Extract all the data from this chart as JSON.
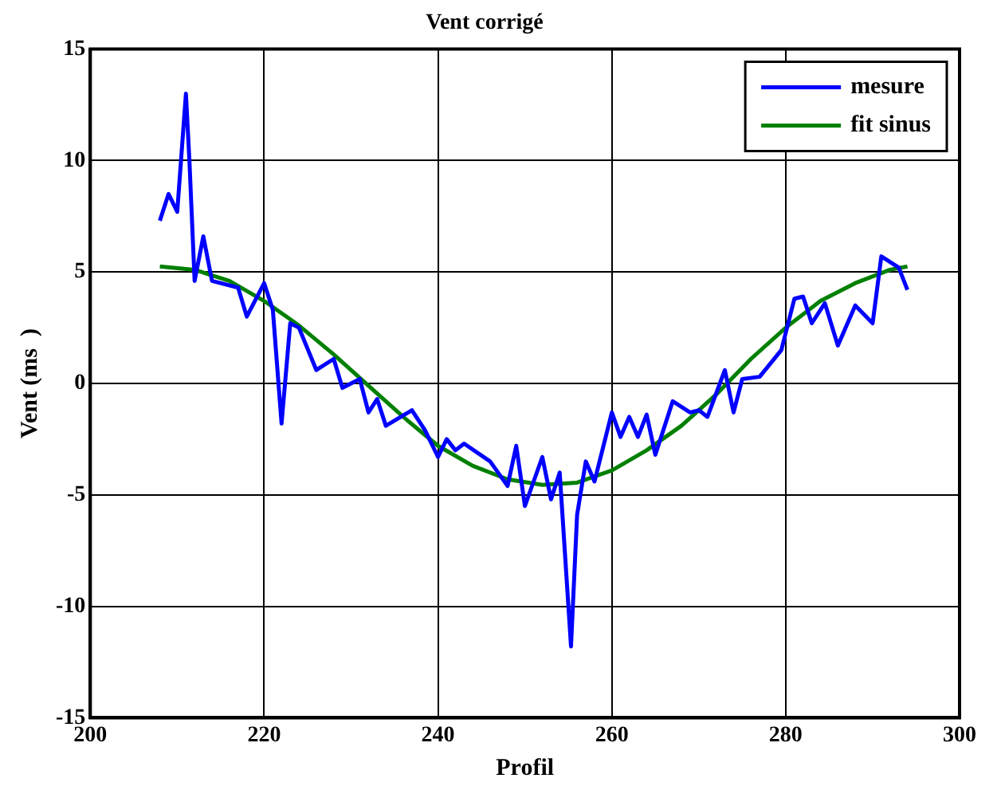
{
  "chart_data": {
    "type": "line",
    "title": "Vent corrigé",
    "xlabel": "Profil",
    "ylabel": "Vent (ms  )",
    "xlim": [
      200,
      300
    ],
    "xticks": [
      200,
      220,
      240,
      260,
      280,
      300
    ],
    "ylim": [
      -15,
      15
    ],
    "yticks": [
      -15,
      -10,
      -5,
      0,
      5,
      10,
      15
    ],
    "grid": true,
    "legend": "top right",
    "line_style": "solid",
    "marker": "none",
    "series": [
      {
        "name": "mesure",
        "color": "#0000ff",
        "x": [
          208,
          209,
          210,
          211,
          211.4,
          212,
          213,
          214,
          217,
          218,
          220,
          221,
          222,
          223,
          224,
          226,
          228,
          229,
          231,
          232,
          233,
          234,
          237,
          238.5,
          240,
          241,
          242,
          243,
          246,
          248,
          249,
          250,
          252,
          253,
          254,
          255.3,
          256,
          257,
          258,
          260,
          261,
          262,
          263,
          264,
          265,
          267,
          269,
          270,
          271,
          273,
          274,
          275,
          277,
          279.5,
          281,
          282,
          283,
          284.5,
          286,
          288,
          290,
          291,
          293,
          294
        ],
        "values": [
          7.3,
          8.5,
          7.7,
          13,
          10,
          4.6,
          6.6,
          4.6,
          4.3,
          3,
          4.5,
          3.3,
          -1.8,
          2.7,
          2.5,
          0.6,
          1.1,
          -0.2,
          0.2,
          -1.3,
          -0.7,
          -1.9,
          -1.2,
          -2.1,
          -3.3,
          -2.5,
          -3,
          -2.7,
          -3.5,
          -4.6,
          -2.8,
          -5.5,
          -3.3,
          -5.2,
          -4,
          -11.8,
          -5.9,
          -3.5,
          -4.4,
          -1.3,
          -2.4,
          -1.5,
          -2.4,
          -1.4,
          -3.2,
          -0.8,
          -1.3,
          -1.2,
          -1.5,
          0.6,
          -1.3,
          0.2,
          0.3,
          1.5,
          3.8,
          3.9,
          2.7,
          3.6,
          1.7,
          3.5,
          2.7,
          5.7,
          5.2,
          4.2
        ]
      },
      {
        "name": "fit sinus",
        "color": "#008000",
        "x": [
          208,
          212,
          216,
          220,
          224,
          228,
          232,
          236,
          240,
          244,
          248,
          252,
          256,
          260,
          264,
          268,
          272,
          276,
          280,
          284,
          288,
          292,
          294
        ],
        "values": [
          5.25,
          5.1,
          4.6,
          3.7,
          2.6,
          1.3,
          -0.1,
          -1.5,
          -2.8,
          -3.7,
          -4.3,
          -4.55,
          -4.45,
          -3.9,
          -3,
          -1.9,
          -0.5,
          1.1,
          2.5,
          3.7,
          4.5,
          5.1,
          5.25
        ]
      }
    ]
  }
}
